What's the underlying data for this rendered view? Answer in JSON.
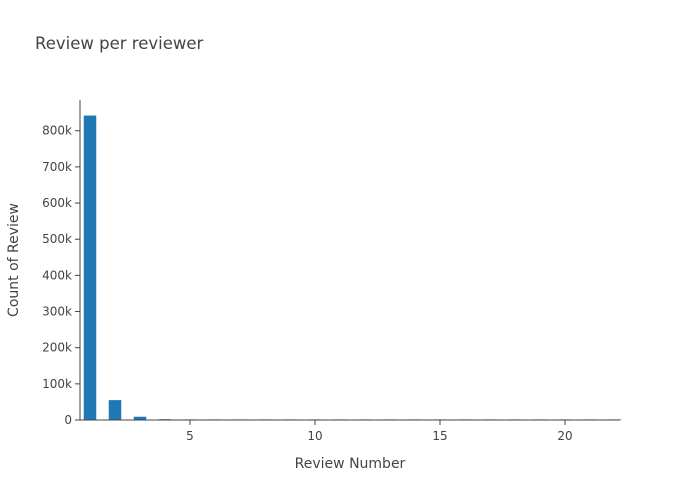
{
  "chart_data": {
    "type": "bar",
    "title": "Review per reviewer",
    "xlabel": "Review Number",
    "ylabel": "Count of Review",
    "x": [
      1,
      2,
      3,
      4,
      5,
      6,
      7,
      8,
      9,
      10,
      11,
      12,
      13,
      14,
      15,
      16,
      17,
      18,
      19,
      20,
      21,
      22
    ],
    "values": [
      842000,
      55000,
      9000,
      2200,
      700,
      300,
      150,
      90,
      60,
      40,
      30,
      20,
      15,
      10,
      8,
      6,
      5,
      4,
      3,
      2,
      2,
      1
    ],
    "xlim": [
      0.6,
      22.2
    ],
    "ylim": [
      0,
      885000
    ],
    "x_ticks": [
      5,
      10,
      15,
      20
    ],
    "x_tick_labels": [
      "5",
      "10",
      "15",
      "20"
    ],
    "y_ticks": [
      0,
      100000,
      200000,
      300000,
      400000,
      500000,
      600000,
      700000,
      800000
    ],
    "y_tick_labels": [
      "0",
      "100k",
      "200k",
      "300k",
      "400k",
      "500k",
      "600k",
      "700k",
      "800k"
    ],
    "bar_color": "#1f77b4",
    "grid": false,
    "legend": "none"
  }
}
